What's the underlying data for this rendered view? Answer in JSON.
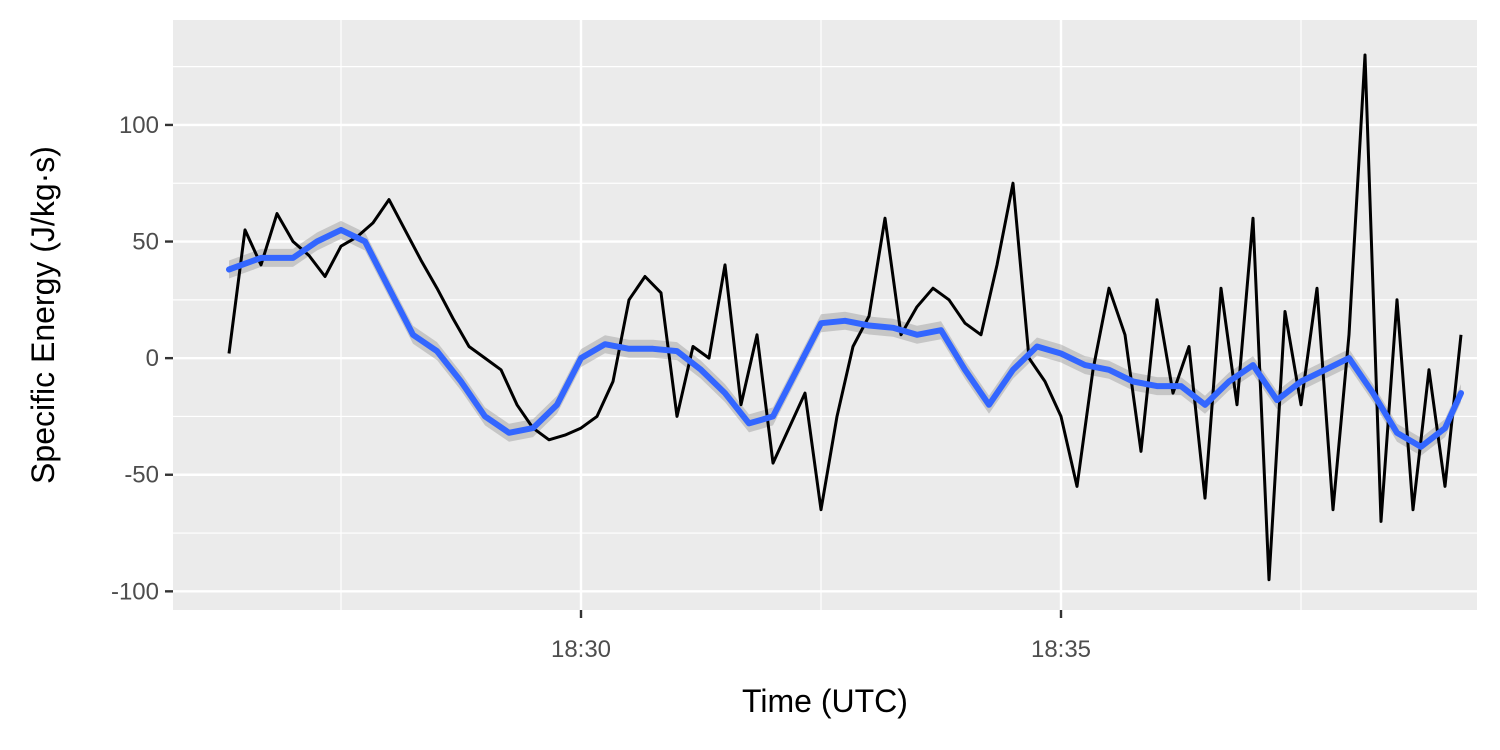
{
  "chart_data": {
    "type": "line",
    "title": "",
    "xlabel": "Time (UTC)",
    "ylabel": "Specific Energy (J/kg·s)",
    "xlim": [
      "18:25:45",
      "18:39:20"
    ],
    "ylim": [
      -108,
      145
    ],
    "x_ticks": [
      "18:30",
      "18:35"
    ],
    "y_ticks": [
      100,
      50,
      0,
      -50,
      -100
    ],
    "y_tick_labels": [
      "100",
      "50",
      "0",
      "-50",
      "-100"
    ],
    "grid": true,
    "legend": "none",
    "colors": {
      "panel": "#ebebeb",
      "grid": "#ffffff",
      "raw": "#000000",
      "smooth": "#3366ff",
      "ribbon": "#999999"
    },
    "series": [
      {
        "kind": "raw",
        "x": [
          "18:26:20",
          "18:26:30",
          "18:26:40",
          "18:26:50",
          "18:27:00",
          "18:27:10",
          "18:27:20",
          "18:27:30",
          "18:27:40",
          "18:27:50",
          "18:28:00",
          "18:28:10",
          "18:28:20",
          "18:28:30",
          "18:28:40",
          "18:28:50",
          "18:29:00",
          "18:29:10",
          "18:29:20",
          "18:29:30",
          "18:29:40",
          "18:29:50",
          "18:30:00",
          "18:30:10",
          "18:30:20",
          "18:30:30",
          "18:30:40",
          "18:30:50",
          "18:31:00",
          "18:31:10",
          "18:31:20",
          "18:31:30",
          "18:31:40",
          "18:31:50",
          "18:32:00",
          "18:32:10",
          "18:32:20",
          "18:32:30",
          "18:32:40",
          "18:32:50",
          "18:33:00",
          "18:33:10",
          "18:33:20",
          "18:33:30",
          "18:33:40",
          "18:33:50",
          "18:34:00",
          "18:34:10",
          "18:34:20",
          "18:34:30",
          "18:34:40",
          "18:34:50",
          "18:35:00",
          "18:35:10",
          "18:35:20",
          "18:35:30",
          "18:35:40",
          "18:35:50",
          "18:36:00",
          "18:36:10",
          "18:36:20",
          "18:36:30",
          "18:36:40",
          "18:36:50",
          "18:37:00",
          "18:37:10",
          "18:37:20",
          "18:37:30",
          "18:37:40",
          "18:37:50",
          "18:38:00",
          "18:38:10",
          "18:38:20",
          "18:38:30",
          "18:38:40",
          "18:38:50",
          "18:39:00",
          "18:39:10"
        ],
        "values": [
          2,
          55,
          40,
          62,
          50,
          44,
          35,
          48,
          52,
          58,
          68,
          55,
          42,
          30,
          17,
          5,
          0,
          -5,
          -20,
          -30,
          -35,
          -33,
          -30,
          -25,
          -10,
          25,
          35,
          28,
          -25,
          5,
          0,
          40,
          -20,
          10,
          -45,
          -30,
          -15,
          -65,
          -25,
          5,
          18,
          60,
          10,
          22,
          30,
          25,
          15,
          10,
          40,
          75,
          0,
          -10,
          -25,
          -55,
          -5,
          30,
          10,
          -40,
          25,
          -15,
          5,
          -60,
          30,
          -20,
          60,
          -95,
          20,
          -20,
          30,
          -65,
          10,
          130,
          -70,
          25,
          -65,
          -5,
          -55,
          10
        ]
      },
      {
        "kind": "smooth",
        "x": [
          "18:26:20",
          "18:26:40",
          "18:27:00",
          "18:27:15",
          "18:27:30",
          "18:27:45",
          "18:28:00",
          "18:28:15",
          "18:28:30",
          "18:28:45",
          "18:29:00",
          "18:29:15",
          "18:29:30",
          "18:29:45",
          "18:30:00",
          "18:30:15",
          "18:30:30",
          "18:30:45",
          "18:31:00",
          "18:31:15",
          "18:31:30",
          "18:31:45",
          "18:32:00",
          "18:32:15",
          "18:32:30",
          "18:32:45",
          "18:33:00",
          "18:33:15",
          "18:33:30",
          "18:33:45",
          "18:34:00",
          "18:34:15",
          "18:34:30",
          "18:34:45",
          "18:35:00",
          "18:35:15",
          "18:35:30",
          "18:35:45",
          "18:36:00",
          "18:36:15",
          "18:36:30",
          "18:36:45",
          "18:37:00",
          "18:37:15",
          "18:37:30",
          "18:37:45",
          "18:38:00",
          "18:38:15",
          "18:38:30",
          "18:38:45",
          "18:39:00",
          "18:39:10"
        ],
        "values": [
          38,
          43,
          43,
          50,
          55,
          50,
          30,
          10,
          3,
          -10,
          -25,
          -32,
          -30,
          -20,
          0,
          6,
          4,
          4,
          3,
          -5,
          -15,
          -28,
          -25,
          -5,
          15,
          16,
          14,
          13,
          10,
          12,
          -5,
          -20,
          -5,
          5,
          2,
          -3,
          -5,
          -10,
          -12,
          -12,
          -20,
          -10,
          -3,
          -18,
          -10,
          -5,
          0,
          -15,
          -32,
          -38,
          -30,
          -15
        ]
      }
    ]
  }
}
